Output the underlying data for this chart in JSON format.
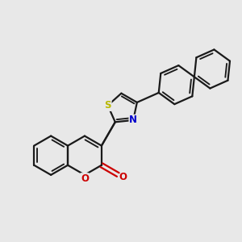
{
  "background_color": "#e8e8e8",
  "bond_color": "#1a1a1a",
  "bond_width": 1.6,
  "S_color": "#b8b800",
  "N_color": "#0000cc",
  "O_color": "#cc0000",
  "figsize": [
    3.0,
    3.0
  ],
  "dpi": 100,
  "xlim": [
    0,
    10
  ],
  "ylim": [
    0,
    10
  ]
}
